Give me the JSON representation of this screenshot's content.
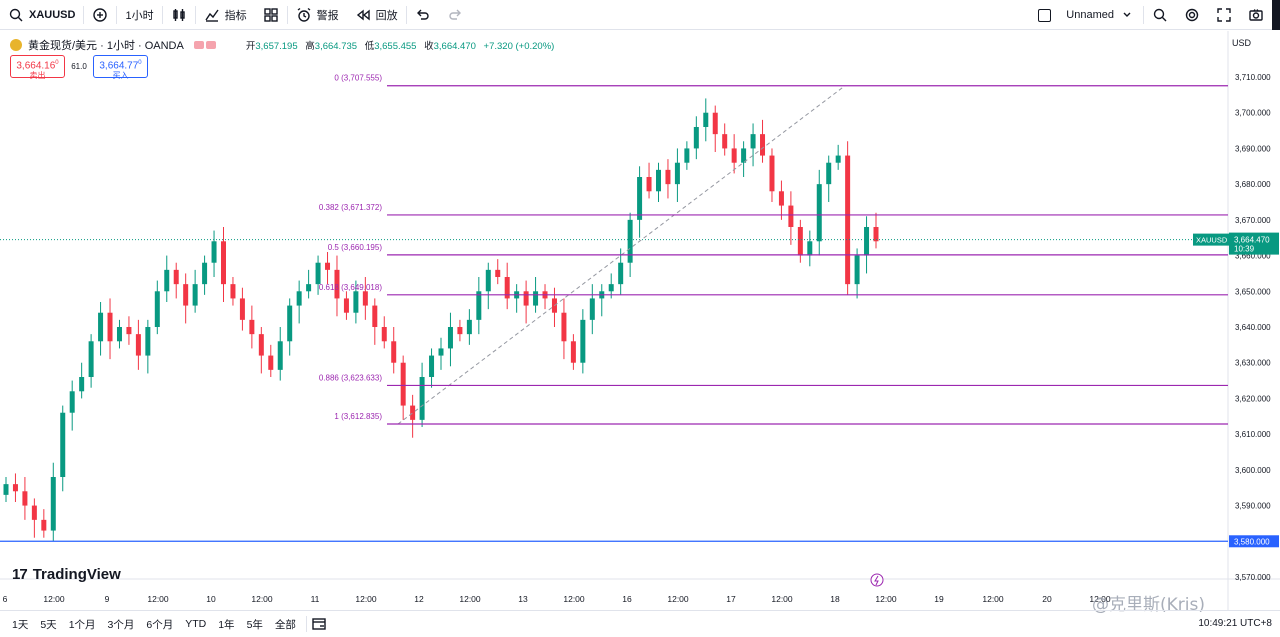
{
  "toolbar": {
    "symbol": "XAUUSD",
    "interval": "1小时",
    "indicators_label": "指标",
    "alert_label": "警报",
    "replay_label": "回放",
    "layout_name": "Unnamed"
  },
  "legend": {
    "title": "黄金现货/美元 · 1小时 · OANDA",
    "open_label": "开",
    "open": "3,657.195",
    "high_label": "高",
    "high": "3,664.735",
    "low_label": "低",
    "low": "3,655.455",
    "close_label": "收",
    "close": "3,664.470",
    "change": "+7.320 (+0.20%)"
  },
  "trade": {
    "sell_price": "3,664.16",
    "sell_sup": "0",
    "sell_label": "卖出",
    "spread": "61.0",
    "buy_price": "3,664.77",
    "buy_sup": "0",
    "buy_label": "买入"
  },
  "price_axis": {
    "currency": "USD",
    "labels": [
      "3,710.000",
      "3,700.000",
      "3,690.000",
      "3,680.000",
      "3,670.000",
      "3,660.000",
      "3,650.000",
      "3,640.000",
      "3,630.000",
      "3,620.000",
      "3,610.000",
      "3,600.000",
      "3,590.000",
      "3,570.000"
    ],
    "last_symbol": "XAUUSD",
    "last_price": "3,664.470",
    "countdown": "10:39",
    "hline_price": "3,580.000"
  },
  "time_axis": [
    "6",
    "12:00",
    "9",
    "12:00",
    "10",
    "12:00",
    "11",
    "12:00",
    "12",
    "12:00",
    "13",
    "12:00",
    "16",
    "12:00",
    "17",
    "12:00",
    "18",
    "12:00",
    "19",
    "12:00",
    "20",
    "12:00"
  ],
  "fib_levels": [
    {
      "label": "0 (3,707.555)",
      "value": 3707.555
    },
    {
      "label": "0.382 (3,671.372)",
      "value": 3671.372
    },
    {
      "label": "0.5 (3,660.195)",
      "value": 3660.195
    },
    {
      "label": "0.618 (3,649.018)",
      "value": 3649.018
    },
    {
      "label": "0.886 (3,623.633)",
      "value": 3623.633
    },
    {
      "label": "1 (3,612.835)",
      "value": 3612.835
    }
  ],
  "horizontal_line": 3580.0,
  "colors": {
    "up": "#089981",
    "down": "#f23645",
    "fib": "#9c27b0",
    "hline": "#2962ff"
  },
  "brand": "TradingView",
  "watermark": "@克里斯(Kris)",
  "bottom": {
    "ranges": [
      "1天",
      "5天",
      "1个月",
      "3个月",
      "6个月",
      "YTD",
      "1年",
      "5年",
      "全部"
    ],
    "clock": "10:49:21 UTC+8"
  },
  "chart_data": {
    "type": "candlestick",
    "close_series": [
      3596,
      3594,
      3590,
      3586,
      3583,
      3598,
      3616,
      3622,
      3626,
      3636,
      3644,
      3636,
      3640,
      3638,
      3632,
      3640,
      3650,
      3656,
      3652,
      3646,
      3652,
      3658,
      3664,
      3652,
      3648,
      3642,
      3638,
      3632,
      3628,
      3636,
      3646,
      3650,
      3652,
      3658,
      3656,
      3648,
      3644,
      3650,
      3646,
      3640,
      3636,
      3630,
      3618,
      3614,
      3626,
      3632,
      3634,
      3640,
      3638,
      3642,
      3650,
      3656,
      3654,
      3648,
      3650,
      3646,
      3650,
      3648,
      3644,
      3636,
      3630,
      3642,
      3648,
      3650,
      3652,
      3658,
      3670,
      3682,
      3678,
      3684,
      3680,
      3686,
      3690,
      3696,
      3700,
      3694,
      3690,
      3686,
      3690,
      3694,
      3688,
      3678,
      3674,
      3668,
      3660,
      3664,
      3680,
      3686,
      3688,
      3652,
      3660,
      3668,
      3664
    ]
  }
}
